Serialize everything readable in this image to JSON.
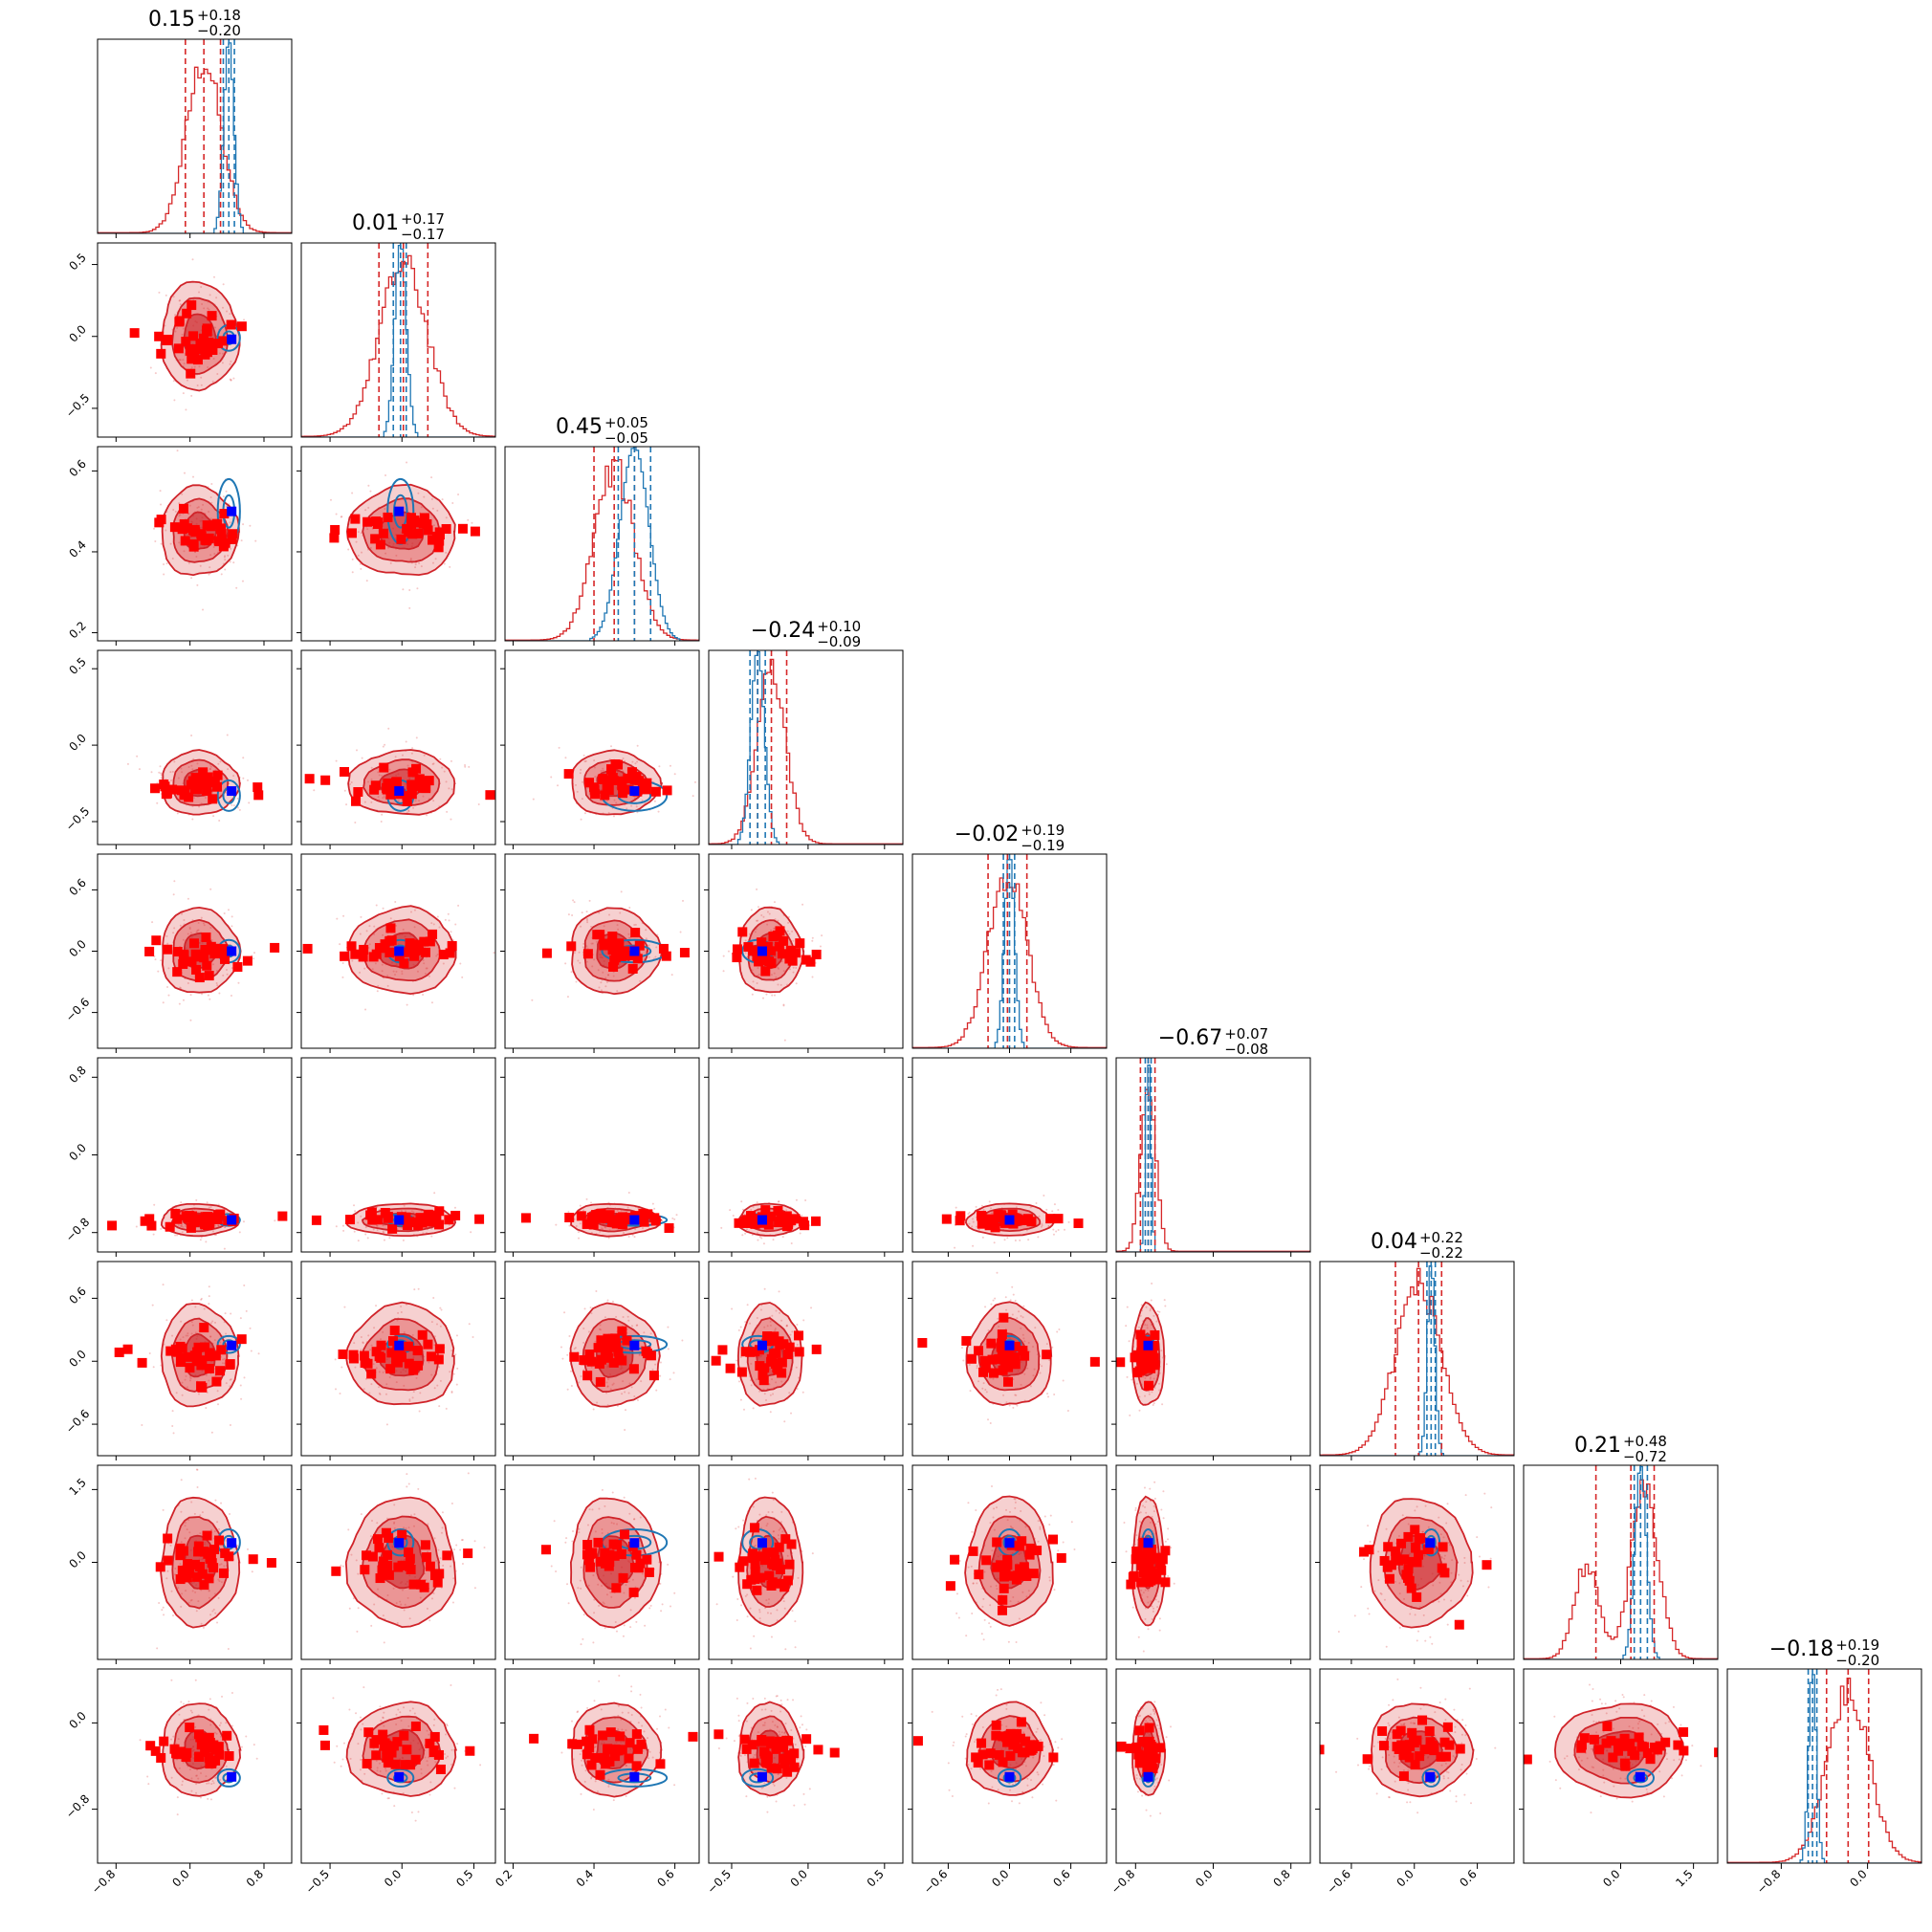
{
  "chart_data": {
    "type": "corner",
    "n_params": 9,
    "titles": [
      {
        "median": "0.15",
        "plus": "+0.18",
        "minus": "−0.20"
      },
      {
        "median": "0.01",
        "plus": "+0.17",
        "minus": "−0.17"
      },
      {
        "median": "0.45",
        "plus": "+0.05",
        "minus": "−0.05"
      },
      {
        "median": "−0.24",
        "plus": "+0.10",
        "minus": "−0.09"
      },
      {
        "median": "−0.02",
        "plus": "+0.19",
        "minus": "−0.19"
      },
      {
        "median": "−0.67",
        "plus": "+0.07",
        "minus": "−0.08"
      },
      {
        "median": "0.04",
        "plus": "+0.22",
        "minus": "−0.22"
      },
      {
        "median": "0.21",
        "plus": "+0.48",
        "minus": "−0.72"
      },
      {
        "median": "−0.18",
        "plus": "+0.19",
        "minus": "−0.20"
      }
    ],
    "ranges": [
      [
        -1.0,
        1.1
      ],
      [
        -0.7,
        0.65
      ],
      [
        0.18,
        0.66
      ],
      [
        -0.65,
        0.62
      ],
      [
        -0.95,
        0.95
      ],
      [
        -1.0,
        1.0
      ],
      [
        -0.9,
        0.95
      ],
      [
        -2.0,
        2.0
      ],
      [
        -1.3,
        0.5
      ]
    ],
    "x_ticks": [
      [
        -0.8,
        0.0,
        0.8
      ],
      [
        -0.5,
        0.0,
        0.5
      ],
      [
        0.2,
        0.4,
        0.6
      ],
      [
        -0.5,
        0.0,
        0.5
      ],
      [
        -0.6,
        0.0,
        0.6
      ],
      [
        -0.8,
        0.0,
        0.8
      ],
      [
        -0.6,
        0.0,
        0.6
      ],
      [
        0.0,
        1.5
      ],
      [
        -0.8,
        0.0
      ]
    ],
    "x_tick_labels": [
      [
        "−0.8",
        "0.0",
        "0.8"
      ],
      [
        "−0.5",
        "0.0",
        "0.5"
      ],
      [
        "0.2",
        "0.4",
        "0.6"
      ],
      [
        "−0.5",
        "0.0",
        "0.5"
      ],
      [
        "−0.6",
        "0.0",
        "0.6"
      ],
      [
        "−0.8",
        "0.0",
        "0.8"
      ],
      [
        "−0.6",
        "0.0",
        "0.6"
      ],
      [
        "0.0",
        "1.5"
      ],
      [
        "−0.8",
        "0.0"
      ]
    ],
    "y_ticks": [
      [],
      [
        -0.5,
        0.0,
        0.5
      ],
      [
        0.2,
        0.4,
        0.6
      ],
      [
        -0.5,
        0.0,
        0.5
      ],
      [
        -0.6,
        0.0,
        0.6
      ],
      [
        -0.8,
        0.0,
        0.8
      ],
      [
        -0.6,
        0.0,
        0.6
      ],
      [
        0.0,
        1.5
      ],
      [
        -0.8,
        0.0
      ]
    ],
    "y_tick_labels": [
      [],
      [
        "−0.5",
        "0.0",
        "0.5"
      ],
      [
        "0.2",
        "0.4",
        "0.6"
      ],
      [
        "−0.5",
        "0.0",
        "0.5"
      ],
      [
        "−0.6",
        "0.0",
        "0.6"
      ],
      [
        "−0.8",
        "0.0",
        "0.8"
      ],
      [
        "−0.6",
        "0.0",
        "0.6"
      ],
      [
        "0.0",
        "1.5"
      ],
      [
        "−0.8",
        "0.0"
      ]
    ],
    "truth_values": [
      0.45,
      -0.02,
      0.5,
      -0.3,
      0.0,
      -0.67,
      0.15,
      0.4,
      -0.5
    ],
    "red_posterior": {
      "name": "",
      "color": "#d62728",
      "centers": [
        0.1,
        0.0,
        0.45,
        -0.25,
        0.0,
        -0.67,
        0.05,
        0.0,
        -0.25
      ],
      "quantiles": [
        [
          -0.05,
          0.15,
          0.33
        ],
        [
          -0.16,
          0.01,
          0.18
        ],
        [
          0.4,
          0.45,
          0.5
        ],
        [
          -0.33,
          -0.24,
          -0.14
        ],
        [
          -0.21,
          -0.02,
          0.17
        ],
        [
          -0.75,
          -0.67,
          -0.6
        ],
        [
          -0.18,
          0.04,
          0.26
        ],
        [
          -0.51,
          0.21,
          0.69
        ],
        [
          -0.38,
          -0.18,
          0.01
        ]
      ]
    },
    "blue_posterior": {
      "name": "",
      "color": "#1f77b4",
      "quantiles": [
        [
          0.36,
          0.42,
          0.48
        ],
        [
          -0.06,
          -0.01,
          0.03
        ],
        [
          0.46,
          0.5,
          0.54
        ],
        [
          -0.38,
          -0.33,
          -0.28
        ],
        [
          -0.06,
          0.0,
          0.05
        ],
        [
          -0.7,
          -0.67,
          -0.64
        ],
        [
          0.12,
          0.16,
          0.2
        ],
        [
          0.28,
          0.41,
          0.55
        ],
        [
          -0.55,
          -0.51,
          -0.47
        ]
      ]
    },
    "grid": false,
    "legend": "none"
  }
}
